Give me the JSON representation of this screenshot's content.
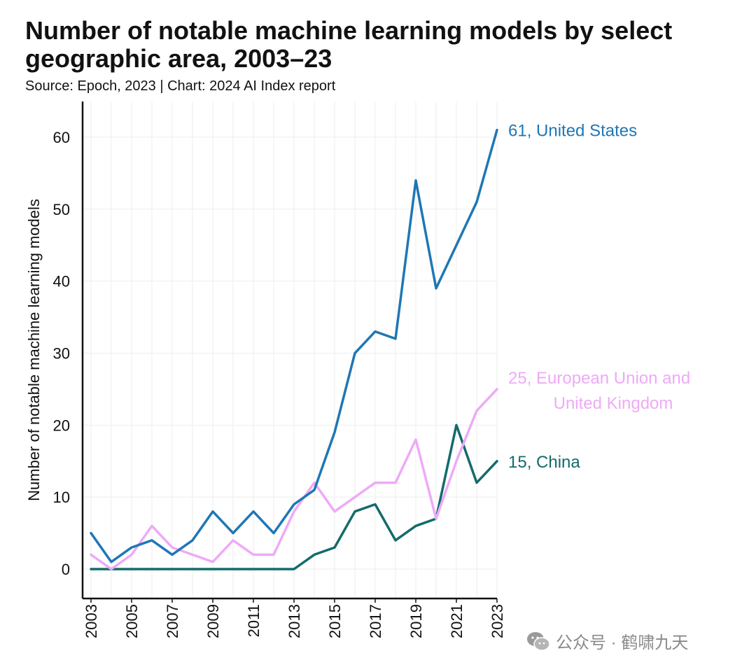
{
  "title": "Number of notable machine learning models by select geographic area, 2003–23",
  "subtitle": "Source: Epoch, 2023 | Chart: 2024 AI Index report",
  "watermark": "公众号 · 鹤啸九天",
  "chart_data": {
    "type": "line",
    "title": "Number of notable machine learning models by select geographic area, 2003–23",
    "xlabel": "",
    "ylabel": "Number of notable machine learning models",
    "x": [
      2003,
      2004,
      2005,
      2006,
      2007,
      2008,
      2009,
      2010,
      2011,
      2012,
      2013,
      2014,
      2015,
      2016,
      2017,
      2018,
      2019,
      2020,
      2021,
      2022,
      2023
    ],
    "xticks": [
      "2003",
      "2005",
      "2007",
      "2009",
      "2011",
      "2013",
      "2015",
      "2017",
      "2019",
      "2021",
      "2023"
    ],
    "yticks": [
      "0",
      "10",
      "20",
      "30",
      "40",
      "50",
      "60"
    ],
    "xlim": [
      2003,
      2023
    ],
    "ylim": [
      -4,
      65
    ],
    "grid": true,
    "series": [
      {
        "name": "United States",
        "color": "#1f77b4",
        "label_lines": [
          "61, United States"
        ],
        "values": [
          5,
          1,
          3,
          4,
          2,
          4,
          8,
          5,
          8,
          5,
          9,
          11,
          19,
          30,
          33,
          32,
          54,
          39,
          45,
          51,
          61
        ]
      },
      {
        "name": "European Union and United Kingdom",
        "color": "#eeaaf7",
        "label_lines": [
          "25, European Union and",
          "United Kingdom"
        ],
        "values": [
          2,
          0,
          2,
          6,
          3,
          2,
          1,
          4,
          2,
          2,
          8,
          12,
          8,
          10,
          12,
          12,
          18,
          7,
          15,
          22,
          25
        ]
      },
      {
        "name": "China",
        "color": "#146b6b",
        "label_lines": [
          "15, China"
        ],
        "values": [
          0,
          0,
          0,
          0,
          0,
          0,
          0,
          0,
          0,
          0,
          0,
          2,
          3,
          8,
          9,
          4,
          6,
          7,
          20,
          12,
          15
        ]
      }
    ]
  }
}
